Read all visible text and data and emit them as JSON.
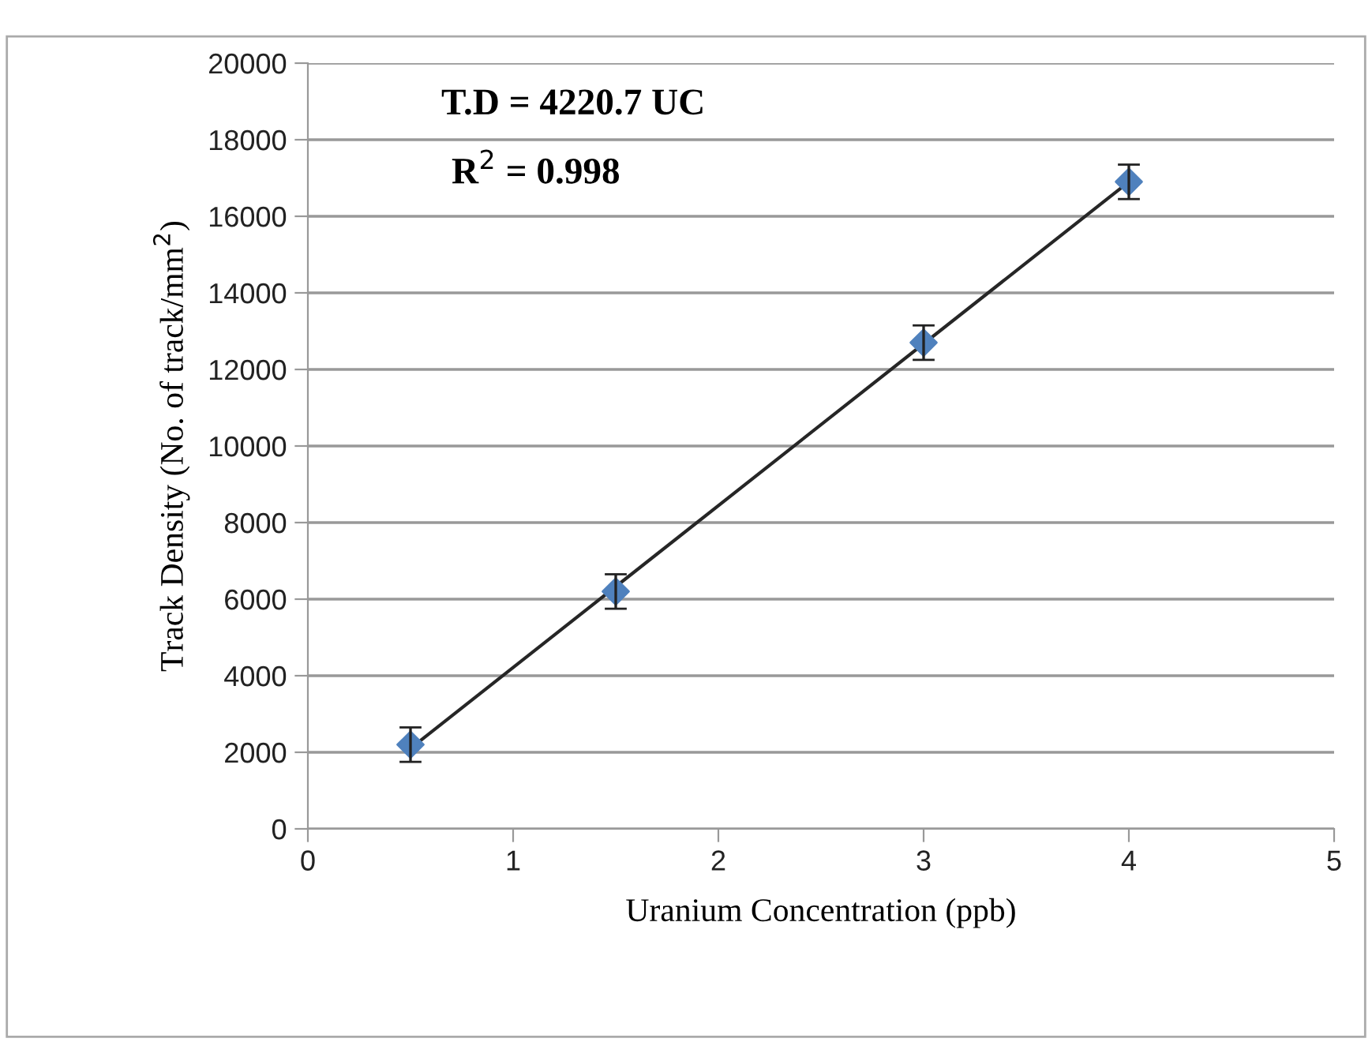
{
  "chart_data": {
    "type": "scatter",
    "xlabel": "Uranium Concentration (ppb)",
    "ylabel": "Track Density (No. of track/mm$^{2}$)",
    "annotations": [
      "T.D = 4220.7 UC",
      "R$^{2}$ = 0.998"
    ],
    "series": [
      {
        "color": "#4f81bd",
        "x": [
          0.5,
          1.5,
          3,
          4
        ],
        "values": [
          2200,
          6200,
          12700,
          16900
        ],
        "errors": [
          450,
          450,
          450,
          450
        ],
        "marker": "diamond"
      },
      {
        "type": "line",
        "color": "#262626",
        "x": [
          0.5,
          4
        ],
        "values": [
          2100,
          16900
        ],
        "line_style": "solid",
        "marker": "none"
      }
    ],
    "xlim": [
      0,
      5
    ],
    "xticks": [
      0,
      1,
      2,
      3,
      4,
      5
    ],
    "ylim": [
      0,
      20000
    ],
    "yticks": [
      0,
      2000,
      4000,
      6000,
      8000,
      10000,
      12000,
      14000,
      16000,
      18000,
      20000
    ],
    "grid": "y"
  }
}
